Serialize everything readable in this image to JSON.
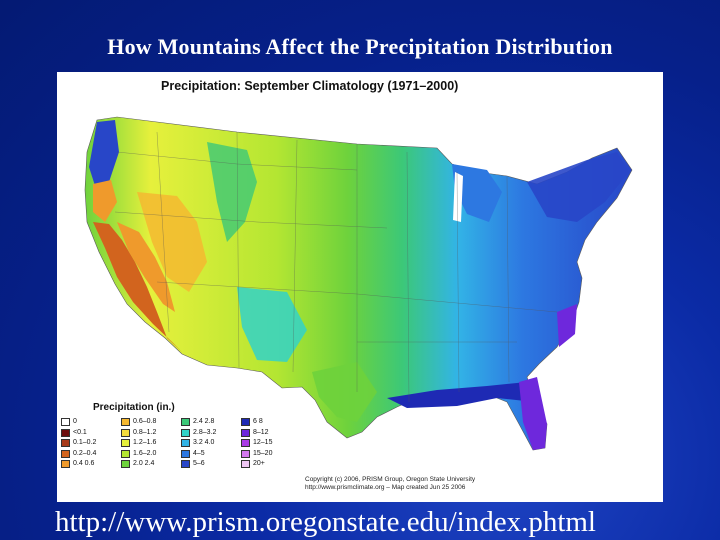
{
  "slide": {
    "title": "How Mountains Affect the Precipitation Distribution",
    "source_url": "http://www.prism.oregonstate.edu/index.phtml"
  },
  "map": {
    "title": "Precipitation:  September Climatology (1971–2000)",
    "legend_title": "Precipitation (in.)",
    "legend_items": [
      {
        "label": "0",
        "color": "#ffffff"
      },
      {
        "label": "<0.1",
        "color": "#6e0f0f"
      },
      {
        "label": "0.1–0.2",
        "color": "#a83a1a"
      },
      {
        "label": "0.2–0.4",
        "color": "#d2641e"
      },
      {
        "label": "0.4  0.6",
        "color": "#ef9a2c"
      },
      {
        "label": "0.6–0.8",
        "color": "#f5b830"
      },
      {
        "label": "0.8–1.2",
        "color": "#f5dc3c"
      },
      {
        "label": "1.2–1.6",
        "color": "#e6f03c"
      },
      {
        "label": "1.6–2.0",
        "color": "#b4e632"
      },
      {
        "label": "2.0  2.4",
        "color": "#6ed23c"
      },
      {
        "label": "2.4  2.8",
        "color": "#3cc878"
      },
      {
        "label": "2.8–3.2",
        "color": "#32d2c8"
      },
      {
        "label": "3.2  4.0",
        "color": "#32b4e6"
      },
      {
        "label": "4–5",
        "color": "#2d78e1"
      },
      {
        "label": "5–6",
        "color": "#2846c8"
      },
      {
        "label": "6  8",
        "color": "#1e2ab4"
      },
      {
        "label": "8–12",
        "color": "#6e28dc"
      },
      {
        "label": "12–15",
        "color": "#aa3ce6"
      },
      {
        "label": "15–20",
        "color": "#d278ee"
      },
      {
        "label": "20+",
        "color": "#f0c8f5"
      }
    ],
    "copyright_line1": "Copyright (c) 2006, PRISM Group, Oregon State University",
    "copyright_line2": "http://www.prismclimate.org  –  Map created Jun 25 2006"
  }
}
